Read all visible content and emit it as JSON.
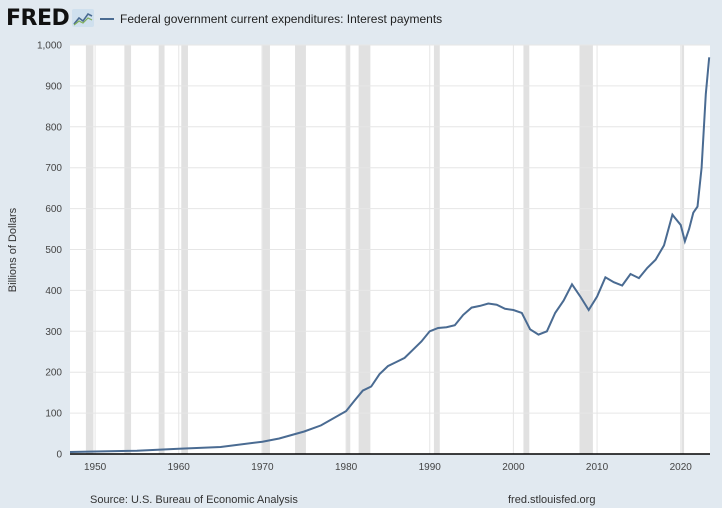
{
  "header": {
    "logo_text": "FRED",
    "logo_icon": "line-chart-icon",
    "legend_label": "Federal government current expenditures: Interest payments",
    "legend_color": "#4a6b92"
  },
  "footer": {
    "source": "Source: U.S. Bureau of Economic Analysis",
    "url": "fred.stlouisfed.org"
  },
  "chart_data": {
    "type": "line",
    "title": "",
    "xlabel": "",
    "ylabel": "Billions of Dollars",
    "xlim": [
      1947,
      2023.5
    ],
    "ylim": [
      0,
      1000
    ],
    "x_ticks": [
      1950,
      1960,
      1970,
      1980,
      1990,
      2000,
      2010,
      2020
    ],
    "y_ticks": [
      0,
      100,
      200,
      300,
      400,
      500,
      600,
      700,
      800,
      900,
      1000
    ],
    "y_tick_labels": [
      "0",
      "100",
      "200",
      "300",
      "400",
      "500",
      "600",
      "700",
      "800",
      "900",
      "1,000"
    ],
    "grid": true,
    "recession_bands": [
      [
        1948.9,
        1949.8
      ],
      [
        1953.5,
        1954.3
      ],
      [
        1957.6,
        1958.3
      ],
      [
        1960.3,
        1961.1
      ],
      [
        1969.9,
        1970.9
      ],
      [
        1973.9,
        1975.2
      ],
      [
        1980.0,
        1980.5
      ],
      [
        1981.5,
        1982.9
      ],
      [
        1990.5,
        1991.2
      ],
      [
        2001.2,
        2001.9
      ],
      [
        2007.9,
        2009.5
      ],
      [
        2020.1,
        2020.4
      ]
    ],
    "series": [
      {
        "name": "Federal government current expenditures: Interest payments",
        "color": "#4a6b92",
        "x": [
          1947,
          1950,
          1955,
          1960,
          1965,
          1970,
          1972,
          1975,
          1977,
          1980,
          1981,
          1982,
          1983,
          1984,
          1985,
          1986,
          1987,
          1988,
          1989,
          1990,
          1991,
          1992,
          1993,
          1994,
          1995,
          1996,
          1997,
          1998,
          1999,
          2000,
          2001,
          2002,
          2003,
          2004,
          2005,
          2006,
          2007,
          2008,
          2009,
          2010,
          2011,
          2012,
          2013,
          2014,
          2015,
          2016,
          2017,
          2018,
          2019,
          2020,
          2020.5,
          2021,
          2021.5,
          2022,
          2022.5,
          2023,
          2023.4
        ],
        "y": [
          5,
          6,
          8,
          13,
          17,
          30,
          38,
          55,
          70,
          105,
          130,
          155,
          165,
          195,
          215,
          225,
          235,
          255,
          275,
          300,
          308,
          310,
          315,
          340,
          358,
          362,
          368,
          365,
          355,
          352,
          345,
          305,
          292,
          300,
          345,
          375,
          415,
          385,
          352,
          385,
          432,
          420,
          412,
          440,
          430,
          455,
          475,
          510,
          585,
          560,
          520,
          550,
          590,
          605,
          700,
          880,
          970
        ]
      }
    ]
  }
}
